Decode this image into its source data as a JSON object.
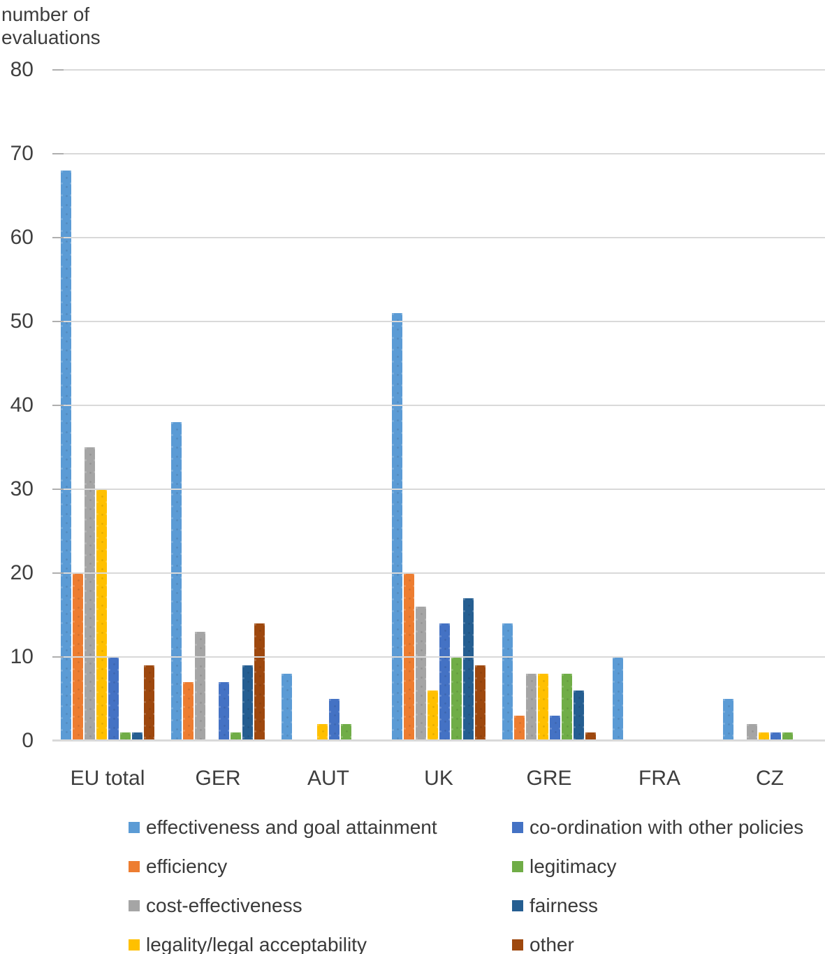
{
  "y_axis_title": {
    "line1": "number of",
    "line2": "evaluations"
  },
  "chart_data": {
    "type": "bar",
    "title": "",
    "xlabel": "",
    "ylabel": "number of evaluations",
    "ylim": [
      0,
      80
    ],
    "yticks": [
      0,
      10,
      20,
      30,
      40,
      50,
      60,
      70,
      80
    ],
    "grid": true,
    "legend_position": "bottom",
    "legend_columns": 2,
    "categories": [
      "EU total",
      "GER",
      "AUT",
      "UK",
      "GRE",
      "FRA",
      "CZ"
    ],
    "series": [
      {
        "name": "effectiveness and goal attainment",
        "color": "#5B9BD5",
        "values": [
          68,
          38,
          8,
          51,
          14,
          10,
          5
        ]
      },
      {
        "name": "efficiency",
        "color": "#ED7D31",
        "values": [
          20,
          7,
          0,
          20,
          3,
          0,
          0
        ]
      },
      {
        "name": "cost-effectiveness",
        "color": "#A5A5A5",
        "values": [
          35,
          13,
          0,
          16,
          8,
          0,
          2
        ]
      },
      {
        "name": "legality/legal acceptability",
        "color": "#FFC000",
        "values": [
          30,
          0,
          2,
          6,
          8,
          0,
          1
        ]
      },
      {
        "name": "co-ordination with other policies",
        "color": "#4472C4",
        "values": [
          10,
          7,
          5,
          14,
          3,
          0,
          1
        ]
      },
      {
        "name": "legitimacy",
        "color": "#70AD47",
        "values": [
          1,
          1,
          2,
          10,
          8,
          0,
          1
        ]
      },
      {
        "name": "fairness",
        "color": "#255E91",
        "values": [
          1,
          9,
          0,
          17,
          6,
          0,
          0
        ]
      },
      {
        "name": "other",
        "color": "#9E480E",
        "values": [
          9,
          14,
          0,
          9,
          1,
          0,
          0
        ]
      }
    ]
  },
  "colors": {
    "gridline": "#D9D9D9",
    "axis_line": "#D9D9D9",
    "tick_mark": "#AFAFAF",
    "axis_text": "#404040",
    "legend_text": "#3A3A3A",
    "background": "#FFFFFF"
  }
}
